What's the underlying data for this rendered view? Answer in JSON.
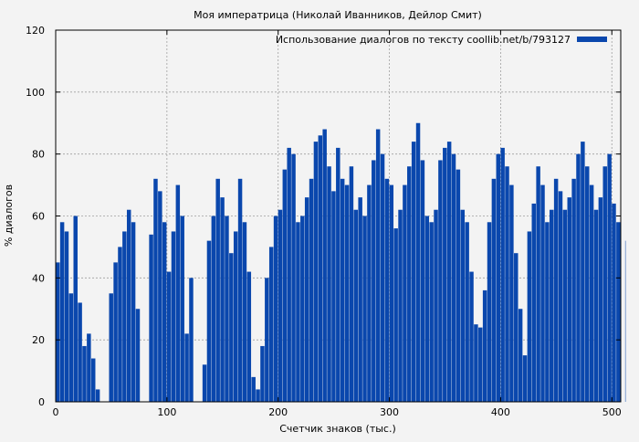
{
  "chart_data": {
    "type": "bar",
    "title": "Моя императрица (Николай Иванников, Дейлор Смит)",
    "xlabel": "Счетчик знаков (тыс.)",
    "ylabel": "% диалогов",
    "legend": {
      "label": "Использование диалогов по тексту coollib.net/b/793127",
      "placement": "top-right"
    },
    "xlim": [
      0,
      508
    ],
    "ylim": [
      0,
      120
    ],
    "x_ticks": [
      0,
      100,
      200,
      300,
      400,
      500
    ],
    "y_ticks": [
      0,
      20,
      40,
      60,
      80,
      100,
      120
    ],
    "grid": true,
    "colors": {
      "bar": "#0a47ad",
      "background": "#f3f3f3",
      "grid": "#a0a0a0",
      "axis": "#000000",
      "text": "#000000"
    },
    "series": [
      {
        "x_start": 0,
        "x_step": 4,
        "values": [
          45,
          58,
          55,
          35,
          60,
          32,
          18,
          22,
          14,
          4,
          0,
          0,
          35,
          45,
          50,
          55,
          62,
          58,
          30,
          0,
          0,
          54,
          72,
          68,
          58,
          42,
          55,
          70,
          60,
          22,
          40,
          0,
          0,
          12,
          52,
          60,
          72,
          66,
          60,
          48,
          55,
          72,
          58,
          42,
          8,
          4,
          18,
          40,
          50,
          60,
          62,
          75,
          82,
          80,
          58,
          60,
          66,
          72,
          84,
          86,
          88,
          76,
          68,
          82,
          72,
          70,
          76,
          62,
          66,
          60,
          70,
          78,
          88,
          80,
          72,
          70,
          56,
          62,
          70,
          76,
          84,
          90,
          78,
          60,
          58,
          62,
          78,
          82,
          84,
          80,
          75,
          62,
          58,
          42,
          25,
          24,
          36,
          58,
          72,
          80,
          82,
          76,
          70,
          48,
          30,
          15,
          55,
          64,
          76,
          70,
          58,
          62,
          72,
          68,
          62,
          66,
          72,
          80,
          84,
          76,
          70,
          62,
          66,
          76,
          80,
          64,
          58,
          66,
          52
        ]
      }
    ]
  }
}
